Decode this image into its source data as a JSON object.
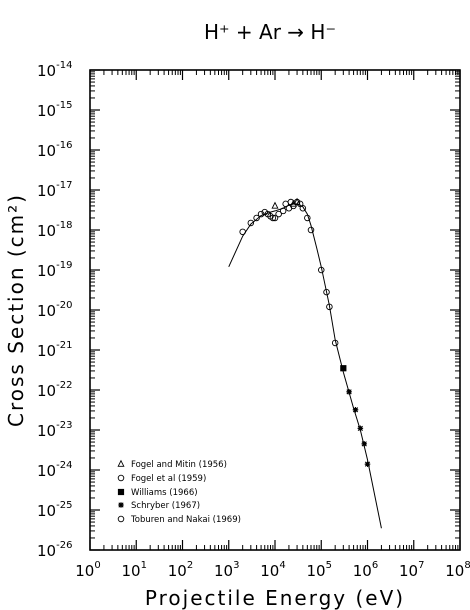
{
  "chart_data": {
    "type": "scatter",
    "title": "H⁺ + Ar → H⁻",
    "xlabel": "Projectile Energy (eV)",
    "ylabel": "Cross Section (cm²)",
    "xscale": "log",
    "yscale": "log",
    "xlim": [
      1,
      100000000
    ],
    "ylim": [
      1e-26,
      1e-14
    ],
    "x_ticks": [
      {
        "base": "10",
        "exp": "0"
      },
      {
        "base": "10",
        "exp": "1"
      },
      {
        "base": "10",
        "exp": "2"
      },
      {
        "base": "10",
        "exp": "3"
      },
      {
        "base": "10",
        "exp": "4"
      },
      {
        "base": "10",
        "exp": "5"
      },
      {
        "base": "10",
        "exp": "6"
      },
      {
        "base": "10",
        "exp": "7"
      },
      {
        "base": "10",
        "exp": "8"
      }
    ],
    "y_ticks": [
      {
        "base": "10",
        "exp": "-26"
      },
      {
        "base": "10",
        "exp": "-25"
      },
      {
        "base": "10",
        "exp": "-24"
      },
      {
        "base": "10",
        "exp": "-23"
      },
      {
        "base": "10",
        "exp": "-22"
      },
      {
        "base": "10",
        "exp": "-21"
      },
      {
        "base": "10",
        "exp": "-20"
      },
      {
        "base": "10",
        "exp": "-19"
      },
      {
        "base": "10",
        "exp": "-18"
      },
      {
        "base": "10",
        "exp": "-17"
      },
      {
        "base": "10",
        "exp": "-16"
      },
      {
        "base": "10",
        "exp": "-15"
      },
      {
        "base": "10",
        "exp": "-14"
      }
    ],
    "grid": false,
    "legend_position": "bottom-left",
    "series": [
      {
        "name": "Fogel and Mitin (1956)",
        "marker": "triangle",
        "points": [
          [
            10000,
            4e-18
          ],
          [
            25000,
            4.5e-18
          ],
          [
            30000,
            5e-18
          ]
        ]
      },
      {
        "name": "Fogel et al (1959)",
        "marker": "circle",
        "points": [
          [
            2000,
            9e-19
          ],
          [
            3000,
            1.5e-18
          ],
          [
            4000,
            2e-18
          ],
          [
            5000,
            2.5e-18
          ],
          [
            6000,
            2.8e-18
          ],
          [
            7000,
            2.5e-18
          ],
          [
            8000,
            2.2e-18
          ],
          [
            9000,
            2e-18
          ],
          [
            10000,
            2e-18
          ],
          [
            12000,
            2.5e-18
          ],
          [
            15000,
            3e-18
          ],
          [
            20000,
            3.5e-18
          ],
          [
            25000,
            4e-18
          ]
        ]
      },
      {
        "name": "Williams (1966)",
        "marker": "filled-square",
        "points": [
          [
            300000,
            3.5e-22
          ]
        ]
      },
      {
        "name": "Schryber (1967)",
        "marker": "asterisk",
        "points": [
          [
            400000,
            9e-23
          ],
          [
            550000,
            3.2e-23
          ],
          [
            700000,
            1.1e-23
          ],
          [
            850000,
            4.5e-24
          ],
          [
            1000000,
            1.4e-24
          ]
        ]
      },
      {
        "name": "Toburen and Nakai (1969)",
        "marker": "circle",
        "points": [
          [
            17000,
            4.5e-18
          ],
          [
            22000,
            5e-18
          ],
          [
            30000,
            5e-18
          ],
          [
            35000,
            4.5e-18
          ],
          [
            40000,
            3.5e-18
          ],
          [
            50000,
            2e-18
          ],
          [
            60000,
            1e-18
          ],
          [
            100000,
            1e-19
          ],
          [
            130000,
            2.8e-20
          ],
          [
            150000,
            1.2e-20
          ],
          [
            200000,
            1.5e-21
          ]
        ]
      }
    ],
    "fit_curve": [
      [
        1000,
        1.2e-19
      ],
      [
        2000,
        7e-19
      ],
      [
        3000,
        1.4e-18
      ],
      [
        5000,
        2.3e-18
      ],
      [
        8000,
        2.8e-18
      ],
      [
        10000,
        3e-18
      ],
      [
        15000,
        3.5e-18
      ],
      [
        20000,
        4.2e-18
      ],
      [
        25000,
        4.5e-18
      ],
      [
        30000,
        4.5e-18
      ],
      [
        40000,
        3.8e-18
      ],
      [
        50000,
        2.5e-18
      ],
      [
        60000,
        1.3e-18
      ],
      [
        80000,
        3.5e-19
      ],
      [
        100000,
        1.2e-19
      ],
      [
        150000,
        1.3e-20
      ],
      [
        200000,
        1.8e-21
      ],
      [
        300000,
        2.8e-22
      ],
      [
        500000,
        3.5e-23
      ],
      [
        700000,
        1e-23
      ],
      [
        1000000,
        1.8e-24
      ],
      [
        2000000,
        3.5e-26
      ]
    ]
  }
}
